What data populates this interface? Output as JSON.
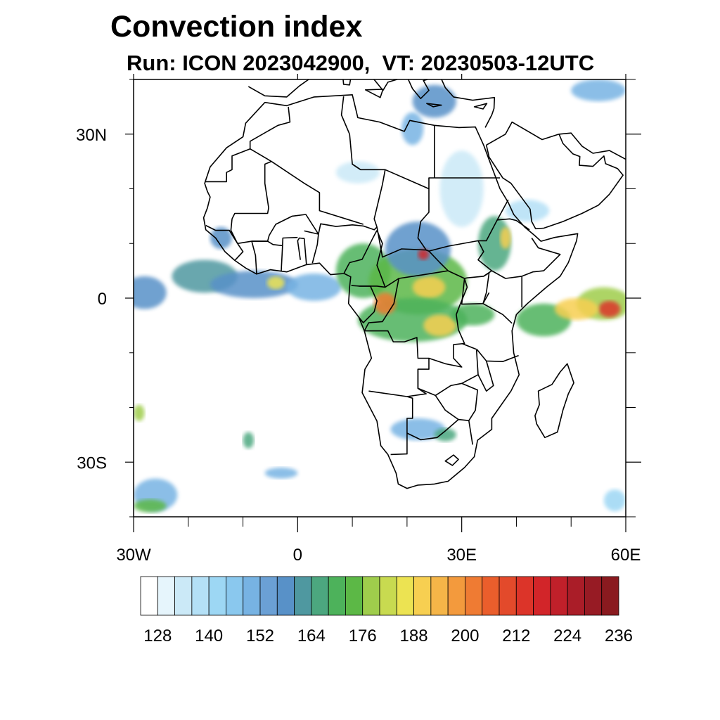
{
  "title": "Convection index",
  "subtitle": "Run: ICON 2023042900,  VT: 20230503-12UTC",
  "map": {
    "extent": {
      "lon": [
        -30,
        60
      ],
      "lat": [
        -40,
        40
      ]
    },
    "lat_ticks": [
      {
        "value": 30,
        "label": "30N"
      },
      {
        "value": 0,
        "label": "0"
      },
      {
        "value": -30,
        "label": "30S"
      }
    ],
    "lon_ticks": [
      {
        "value": -30,
        "label": "30W"
      },
      {
        "value": 0,
        "label": "0"
      },
      {
        "value": 30,
        "label": "30E"
      },
      {
        "value": 60,
        "label": "60E"
      }
    ],
    "minor_lat_ticks": [
      40,
      20,
      10,
      -10,
      -20,
      -40
    ],
    "minor_lon_ticks": [
      -20,
      -10,
      10,
      20,
      40,
      50
    ],
    "fields": [
      {
        "lon": -28,
        "lat": 1,
        "rx": 4,
        "ry": 3,
        "level": 148
      },
      {
        "lon": -17,
        "lat": 4,
        "rx": 6,
        "ry": 3,
        "level": 152
      },
      {
        "lon": -8,
        "lat": 2.5,
        "rx": 8,
        "ry": 2.5,
        "level": 150
      },
      {
        "lon": -4,
        "lat": 2.8,
        "rx": 1.6,
        "ry": 1.2,
        "level": 176
      },
      {
        "lon": 3,
        "lat": 2,
        "rx": 5,
        "ry": 2.5,
        "level": 140
      },
      {
        "lon": 12,
        "lat": 5,
        "rx": 5,
        "ry": 5,
        "level": 160
      },
      {
        "lon": 22,
        "lat": 3,
        "rx": 9,
        "ry": 6,
        "level": 166
      },
      {
        "lon": 24,
        "lat": 2,
        "rx": 3,
        "ry": 2,
        "level": 182
      },
      {
        "lon": 21,
        "lat": -4,
        "rx": 10,
        "ry": 4,
        "level": 160
      },
      {
        "lon": 26,
        "lat": -5,
        "rx": 3,
        "ry": 2,
        "level": 180
      },
      {
        "lon": 16,
        "lat": -1,
        "rx": 2,
        "ry": 2,
        "level": 192
      },
      {
        "lon": 22,
        "lat": 9,
        "rx": 6,
        "ry": 5,
        "level": 150
      },
      {
        "lon": 23,
        "lat": 8,
        "rx": 1,
        "ry": 1,
        "level": 210
      },
      {
        "lon": 36,
        "lat": 10,
        "rx": 3,
        "ry": 5,
        "level": 158
      },
      {
        "lon": 38,
        "lat": 11,
        "rx": 1,
        "ry": 2,
        "level": 180
      },
      {
        "lon": 32,
        "lat": -3,
        "rx": 4,
        "ry": 2,
        "level": 160
      },
      {
        "lon": 45,
        "lat": -4,
        "rx": 5,
        "ry": 3,
        "level": 160
      },
      {
        "lon": 56,
        "lat": -1,
        "rx": 5,
        "ry": 3,
        "level": 170
      },
      {
        "lon": 57,
        "lat": -2,
        "rx": 2,
        "ry": 1.5,
        "level": 206
      },
      {
        "lon": 51,
        "lat": -2,
        "rx": 4,
        "ry": 2,
        "level": 180
      },
      {
        "lon": 25,
        "lat": 36,
        "rx": 4,
        "ry": 3,
        "level": 150
      },
      {
        "lon": 21,
        "lat": 31,
        "rx": 2,
        "ry": 3,
        "level": 140
      },
      {
        "lon": 30,
        "lat": 20,
        "rx": 4,
        "ry": 7,
        "level": 126
      },
      {
        "lon": 42,
        "lat": 16,
        "rx": 4,
        "ry": 2,
        "level": 130
      },
      {
        "lon": 22,
        "lat": -24,
        "rx": 5,
        "ry": 2,
        "level": 140
      },
      {
        "lon": 27,
        "lat": -25,
        "rx": 2,
        "ry": 1.2,
        "level": 156
      },
      {
        "lon": -9,
        "lat": -26,
        "rx": 1,
        "ry": 1.5,
        "level": 158
      },
      {
        "lon": -3,
        "lat": -32,
        "rx": 3,
        "ry": 1,
        "level": 140
      },
      {
        "lon": -26,
        "lat": -36,
        "rx": 4,
        "ry": 3,
        "level": 140
      },
      {
        "lon": -27,
        "lat": -38,
        "rx": 3,
        "ry": 1.2,
        "level": 166
      },
      {
        "lon": -29,
        "lat": -21,
        "rx": 1,
        "ry": 1.5,
        "level": 168
      },
      {
        "lon": 55,
        "lat": 38,
        "rx": 5,
        "ry": 2,
        "level": 140
      },
      {
        "lon": 58,
        "lat": -37,
        "rx": 2,
        "ry": 2,
        "level": 134
      },
      {
        "lon": 11,
        "lat": 23,
        "rx": 4,
        "ry": 2,
        "level": 126
      },
      {
        "lon": -14,
        "lat": 11,
        "rx": 2,
        "ry": 2,
        "level": 148
      }
    ]
  },
  "colorbar": {
    "colors": [
      "#ffffff",
      "#e6f5fc",
      "#cbe9f7",
      "#b4e0f6",
      "#9dd7f4",
      "#8ac8ee",
      "#77b3e3",
      "#6ba0d5",
      "#5891c8",
      "#4f98a0",
      "#4ca77f",
      "#4db25b",
      "#5cb846",
      "#9fcd4c",
      "#c8da50",
      "#ece352",
      "#f7cf51",
      "#f5b548",
      "#f39a3d",
      "#ef7b33",
      "#ea5e2c",
      "#e34a2b",
      "#dc3429",
      "#d22529",
      "#c0202a",
      "#aa1d28",
      "#971b24",
      "#8a1a1f"
    ],
    "levels": [
      120,
      124,
      128,
      132,
      136,
      140,
      144,
      148,
      152,
      156,
      160,
      164,
      168,
      172,
      176,
      180,
      184,
      188,
      192,
      196,
      200,
      204,
      208,
      212,
      216,
      220,
      224,
      228,
      232,
      236
    ],
    "labels": [
      "128",
      "140",
      "152",
      "164",
      "176",
      "188",
      "200",
      "212",
      "224",
      "236"
    ]
  }
}
